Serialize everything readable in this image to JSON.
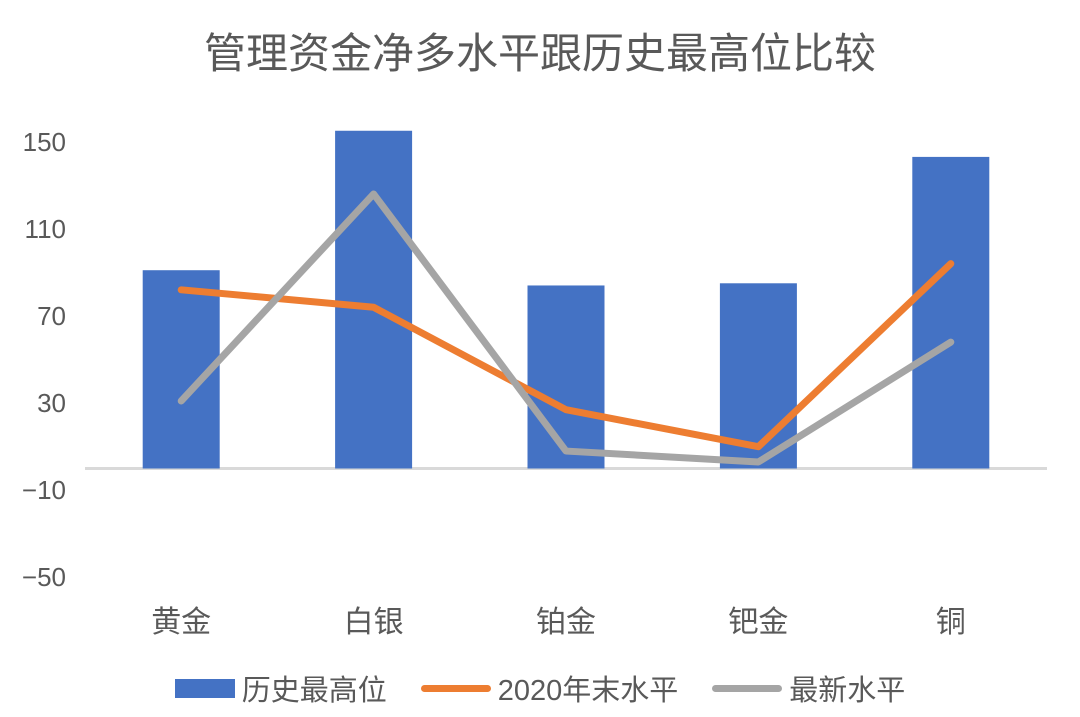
{
  "chart_data": {
    "type": "bar",
    "subtype": "bar-line-combo",
    "title": "管理资金净多水平跟历史最高位比较",
    "categories": [
      "黄金",
      "白银",
      "铂金",
      "钯金",
      "铜"
    ],
    "series": [
      {
        "name": "历史最高位",
        "type": "bar",
        "color": "#4472C4",
        "values": [
          91,
          155,
          84,
          85,
          143
        ]
      },
      {
        "name": "2020年末水平",
        "type": "line",
        "color": "#ED7D31",
        "values": [
          82,
          74,
          27,
          10,
          94
        ]
      },
      {
        "name": "最新水平",
        "type": "line",
        "color": "#A5A5A5",
        "values": [
          31,
          126,
          8,
          3,
          58
        ]
      }
    ],
    "xlabel": "",
    "ylabel": "",
    "ylim": [
      -50,
      160
    ],
    "y_axis": {
      "ticks": [
        {
          "label": "150",
          "value": 150
        },
        {
          "label": "110",
          "value": 110
        },
        {
          "label": "70",
          "value": 70
        },
        {
          "label": "30",
          "value": 30
        },
        {
          "label": "−10",
          "value": -10
        },
        {
          "label": "−50",
          "value": -50
        }
      ]
    },
    "grid": false,
    "legend_position": "bottom",
    "colors": {
      "axis_line": "#D9D9D9",
      "text": "#595959",
      "background": "#FFFFFF"
    }
  }
}
